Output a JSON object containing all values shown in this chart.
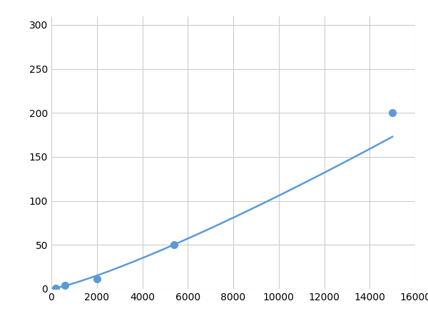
{
  "x": [
    200,
    600,
    2000,
    5400,
    15000
  ],
  "y": [
    1,
    4,
    11,
    50,
    200
  ],
  "line_color": "#5b9bd5",
  "marker_color": "#5b9bd5",
  "marker_size": 7,
  "line_width": 1.8,
  "xlim": [
    0,
    16000
  ],
  "ylim": [
    0,
    310
  ],
  "xticks": [
    0,
    2000,
    4000,
    6000,
    8000,
    10000,
    12000,
    14000,
    16000
  ],
  "yticks": [
    0,
    50,
    100,
    150,
    200,
    250,
    300
  ],
  "grid_color": "#cccccc",
  "background_color": "#ffffff",
  "tick_fontsize": 10
}
